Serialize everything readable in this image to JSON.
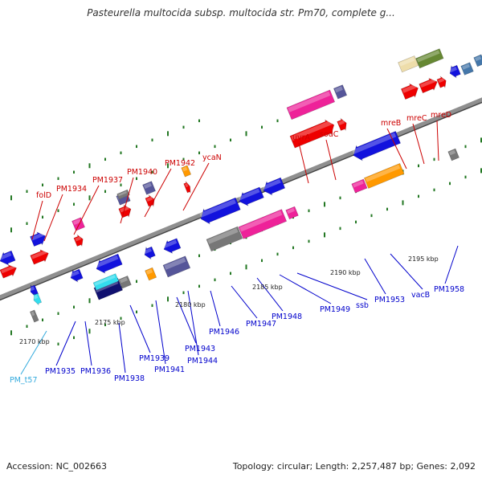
{
  "title": "Pasteurella multocida subsp. multocida str. Pm70, complete g...",
  "footer": {
    "accession": "Accession: NC_002663",
    "summary": "Topology: circular; Length: 2,257,487 bp; Genes: 2,092"
  },
  "colors": {
    "backbone": "#8f8f8f",
    "tick": "#227722",
    "blue": "#1212dd",
    "red": "#ee0000",
    "pink": "#ee2299",
    "navy": "#101070",
    "slate": "#555599",
    "gray": "#777777",
    "orange": "#ff9900",
    "olive": "#668833",
    "khaki": "#eeddaa",
    "cyan": "#33ddee",
    "steel": "#4477aa",
    "top_label": "#cc0000",
    "bottom_label": "#0000cc",
    "rna_label": "#33aadd"
  },
  "scale_labels": [
    "2170 kbp",
    "2175 kbp",
    "2180 kbp",
    "2185 kbp",
    "2190 kbp",
    "2195 kbp"
  ],
  "top_labels": [
    "folD",
    "PM1934",
    "PM1937",
    "PM1940",
    "PM1942",
    "ycaN",
    "uvrA",
    "sodC",
    "mreB",
    "mreC",
    "mreD"
  ],
  "bottom_labels": [
    "PM_t57",
    "PM1935",
    "PM1936",
    "PM1938",
    "PM1939",
    "PM1941",
    "PM1943",
    "PM1944",
    "PM1946",
    "PM1947",
    "PM1948",
    "PM1949",
    "ssb",
    "PM1953",
    "vacB",
    "PM1958"
  ]
}
